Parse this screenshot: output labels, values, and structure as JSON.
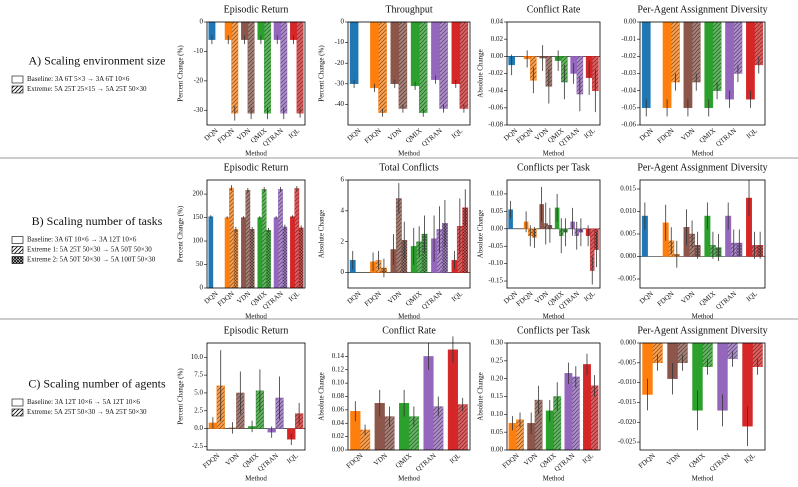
{
  "rows": [
    {
      "label": "A) Scaling environment size",
      "legend": [
        {
          "name": "Baseline: 3A 6T 5×3 → 3A 6T 10×6",
          "hatch": "none"
        },
        {
          "name": "Extreme: 5A 25T 25×15 → 5A 25T 50×30",
          "hatch": "/"
        }
      ]
    },
    {
      "label": "B) Scaling number of tasks",
      "legend": [
        {
          "name": "Baseline: 3A 6T 10×6 → 3A 12T 10×6",
          "hatch": "none"
        },
        {
          "name": "Extreme 1: 5A 25T 50×30 → 5A 50T 50×30",
          "hatch": "/"
        },
        {
          "name": "Extreme 2: 5A 50T 50×30 → 5A 100T 50×30",
          "hatch": "x"
        }
      ]
    },
    {
      "label": "C) Scaling number of agents",
      "legend": [
        {
          "name": "Baseline: 3A 12T 10×6 → 5A 12T 10×6",
          "hatch": "none"
        },
        {
          "name": "Extreme: 5A 25T 50×30 → 9A 25T 50×30",
          "hatch": "/"
        }
      ]
    }
  ],
  "chart_data": [
    {
      "type": "bar",
      "title": "Episodic Return",
      "x_label": "Method",
      "y_label": "Percent Change (%)",
      "categories": [
        "DQN",
        "FDQN",
        "VDN",
        "QMIX",
        "QTRAN",
        "IQL"
      ],
      "colors": [
        "#1f77b4",
        "#ff7f0e",
        "#8c564b",
        "#2ca02c",
        "#9467bd",
        "#d62728"
      ],
      "series": [
        {
          "hatch": "none",
          "values": [
            -6,
            -6,
            -6,
            -6,
            -6,
            -6
          ],
          "errors": [
            1.5,
            1.5,
            1.5,
            1.5,
            1.5,
            1.5
          ]
        },
        {
          "hatch": "/",
          "values": [
            null,
            -31,
            -31,
            -31,
            -31,
            -31
          ],
          "errors": [
            null,
            2.5,
            2,
            2,
            2,
            1.5
          ]
        }
      ],
      "ylim": [
        -35,
        0
      ],
      "yticks": [
        0,
        -10,
        -20,
        -30
      ]
    },
    {
      "type": "bar",
      "title": "Throughput",
      "x_label": "Method",
      "y_label": "Percent Change (%)",
      "categories": [
        "DQN",
        "FDQN",
        "VDN",
        "QMIX",
        "QTRAN",
        "IQL"
      ],
      "colors": [
        "#1f77b4",
        "#ff7f0e",
        "#8c564b",
        "#2ca02c",
        "#9467bd",
        "#d62728"
      ],
      "series": [
        {
          "hatch": "none",
          "values": [
            -30,
            -32,
            -30,
            -31,
            -28,
            -30
          ],
          "errors": [
            2,
            2,
            2,
            2,
            2,
            2
          ]
        },
        {
          "hatch": "/",
          "values": [
            null,
            -44,
            -42,
            -44,
            -42,
            -42
          ],
          "errors": [
            null,
            2,
            2,
            2,
            2,
            2
          ]
        }
      ],
      "ylim": [
        -50,
        0
      ],
      "yticks": [
        0,
        -10,
        -20,
        -30,
        -40
      ]
    },
    {
      "type": "bar",
      "title": "Conflict Rate",
      "x_label": "Method",
      "y_label": "Absolute Change",
      "categories": [
        "DQN",
        "FDQN",
        "VDN",
        "QMIX",
        "QTRAN",
        "IQL"
      ],
      "colors": [
        "#1f77b4",
        "#ff7f0e",
        "#8c564b",
        "#2ca02c",
        "#9467bd",
        "#d62728"
      ],
      "series": [
        {
          "hatch": "none",
          "values": [
            -0.01,
            -0.003,
            -0.002,
            -0.005,
            -0.02,
            -0.025
          ],
          "errors": [
            0.012,
            0.01,
            0.015,
            0.012,
            0.012,
            0.02
          ]
        },
        {
          "hatch": "/",
          "values": [
            null,
            -0.028,
            -0.035,
            -0.03,
            -0.044,
            -0.04
          ],
          "errors": [
            null,
            0.015,
            0.02,
            0.02,
            0.02,
            0.025
          ]
        }
      ],
      "ylim": [
        -0.08,
        0.04
      ],
      "yticks": [
        0.04,
        0.02,
        {
          "value": 0,
          "label": "0.00"
        },
        -0.02,
        -0.04,
        -0.06,
        -0.08
      ]
    },
    {
      "type": "bar",
      "title": "Per-Agent Assignment Diversity",
      "x_label": "Method",
      "categories": [
        "DQN",
        "FDQN",
        "VDN",
        "QMIX",
        "QTRAN",
        "IQL"
      ],
      "colors": [
        "#1f77b4",
        "#ff7f0e",
        "#8c564b",
        "#2ca02c",
        "#9467bd",
        "#d62728"
      ],
      "series": [
        {
          "hatch": "none",
          "values": [
            -0.05,
            -0.05,
            -0.05,
            -0.05,
            -0.045,
            -0.045
          ],
          "errors": [
            0.005,
            0.005,
            0.005,
            0.005,
            0.005,
            0.005
          ]
        },
        {
          "hatch": "/",
          "values": [
            null,
            -0.035,
            -0.035,
            -0.04,
            -0.03,
            -0.025
          ],
          "errors": [
            null,
            0.005,
            0.005,
            0.005,
            0.005,
            0.005
          ]
        }
      ],
      "ylim": [
        -0.06,
        0
      ],
      "yticks": [
        {
          "value": 0,
          "label": "0.00"
        },
        -0.01,
        -0.02,
        -0.03,
        -0.04,
        -0.05,
        -0.06
      ]
    },
    {
      "type": "bar",
      "title": "Episodic Return",
      "x_label": "Method",
      "y_label": "Percent Change (%)",
      "categories": [
        "DQN",
        "FDQN",
        "VDN",
        "QMIX",
        "QTRAN",
        "IQL"
      ],
      "colors": [
        "#1f77b4",
        "#ff7f0e",
        "#8c564b",
        "#2ca02c",
        "#9467bd",
        "#d62728"
      ],
      "series": [
        {
          "hatch": "none",
          "values": [
            152,
            150,
            150,
            150,
            150,
            152
          ],
          "errors": [
            3,
            3,
            3,
            3,
            3,
            3
          ]
        },
        {
          "hatch": "/",
          "values": [
            null,
            213,
            208,
            210,
            210,
            212
          ],
          "errors": [
            null,
            6,
            5,
            5,
            5,
            5
          ]
        },
        {
          "hatch": "x",
          "values": [
            null,
            125,
            125,
            123,
            130,
            128
          ],
          "errors": [
            null,
            5,
            5,
            5,
            5,
            5
          ]
        }
      ],
      "ylim": [
        0,
        230
      ],
      "yticks": [
        0,
        50,
        100,
        150,
        200
      ]
    },
    {
      "type": "bar",
      "title": "Total Conflicts",
      "x_label": "Method",
      "y_label": "Absolute Change",
      "categories": [
        "DQN",
        "FDQN",
        "VDN",
        "QMIX",
        "QTRAN",
        "IQL"
      ],
      "colors": [
        "#1f77b4",
        "#ff7f0e",
        "#8c564b",
        "#2ca02c",
        "#9467bd",
        "#d62728"
      ],
      "series": [
        {
          "hatch": "none",
          "values": [
            0.8,
            0.7,
            1.5,
            1.7,
            2.2,
            0.8
          ],
          "errors": [
            0.6,
            0.6,
            1,
            1.2,
            1.5,
            0.6
          ]
        },
        {
          "hatch": "/",
          "values": [
            null,
            0.8,
            4.8,
            2,
            2.8,
            3
          ],
          "errors": [
            null,
            0.6,
            1,
            1,
            1.5,
            1.8
          ]
        },
        {
          "hatch": "x",
          "values": [
            null,
            0.3,
            2.1,
            2.5,
            3.2,
            4.2
          ],
          "errors": [
            null,
            0.6,
            1.2,
            1.2,
            1.5,
            1.2
          ]
        }
      ],
      "ylim": [
        -1,
        6
      ],
      "yticks": [
        0,
        2,
        4,
        6
      ]
    },
    {
      "type": "bar",
      "title": "Conflicts per Task",
      "x_label": "Method",
      "y_label": "Absolute Change",
      "categories": [
        "DQN",
        "FDQN",
        "VDN",
        "QMIX",
        "QTRAN",
        "IQL"
      ],
      "colors": [
        "#1f77b4",
        "#ff7f0e",
        "#8c564b",
        "#2ca02c",
        "#9467bd",
        "#d62728"
      ],
      "series": [
        {
          "hatch": "none",
          "values": [
            0.055,
            0.02,
            0.07,
            0.06,
            0.02,
            -0.02
          ],
          "errors": [
            0.025,
            0.03,
            0.05,
            0.04,
            0.04,
            0.03
          ]
        },
        {
          "hatch": "/",
          "values": [
            null,
            -0.02,
            0.015,
            -0.02,
            -0.02,
            -0.12
          ],
          "errors": [
            null,
            0.03,
            0.06,
            0.05,
            0.04,
            0.04
          ]
        },
        {
          "hatch": "x",
          "values": [
            null,
            -0.025,
            0.01,
            -0.01,
            -0.01,
            -0.06
          ],
          "errors": [
            null,
            0.03,
            0.05,
            0.04,
            0.04,
            0.05
          ]
        }
      ],
      "ylim": [
        -0.17,
        0.14
      ],
      "yticks": [
        {
          "value": 0.1,
          "label": "0.10"
        },
        0.05,
        {
          "value": 0,
          "label": "0.00"
        },
        -0.05,
        {
          "value": -0.1,
          "label": "-0.10"
        },
        -0.15
      ]
    },
    {
      "type": "bar",
      "title": "Per-Agent Assignment Diversity",
      "x_label": "Method",
      "categories": [
        "DQN",
        "FDQN",
        "VDN",
        "QMIX",
        "QTRAN",
        "IQL"
      ],
      "colors": [
        "#1f77b4",
        "#ff7f0e",
        "#8c564b",
        "#2ca02c",
        "#9467bd",
        "#d62728"
      ],
      "series": [
        {
          "hatch": "none",
          "values": [
            0.009,
            0.0075,
            0.0065,
            0.009,
            0.009,
            0.013
          ],
          "errors": [
            0.003,
            0.004,
            0.004,
            0.003,
            0.003,
            0.004
          ]
        },
        {
          "hatch": "/",
          "values": [
            null,
            0.0035,
            0.005,
            0.0025,
            0.003,
            0.0025
          ],
          "errors": [
            null,
            0.003,
            0.003,
            0.003,
            0.003,
            0.003
          ]
        },
        {
          "hatch": "x",
          "values": [
            null,
            0.0005,
            0.0025,
            0.002,
            0.003,
            0.0025
          ],
          "errors": [
            null,
            0.003,
            0.003,
            0.003,
            0.003,
            0.003
          ]
        }
      ],
      "ylim": [
        -0.007,
        0.017
      ],
      "yticks": [
        -0.005,
        {
          "value": 0,
          "label": "0.000"
        },
        0.005,
        {
          "value": 0.01,
          "label": "0.010"
        },
        0.015
      ]
    },
    {
      "type": "bar",
      "title": "Episodic Return",
      "x_label": "Method",
      "y_label": "Percent Change (%)",
      "categories": [
        "FDQN",
        "VDN",
        "QMIX",
        "QTRAN",
        "IQL"
      ],
      "colors": [
        "#ff7f0e",
        "#8c564b",
        "#2ca02c",
        "#9467bd",
        "#d62728"
      ],
      "series": [
        {
          "hatch": "none",
          "values": [
            0.8,
            0.1,
            0.3,
            -0.5,
            -1.5
          ],
          "errors": [
            0.8,
            0.8,
            0.8,
            0.8,
            0.8
          ]
        },
        {
          "hatch": "/",
          "values": [
            6,
            5,
            5.3,
            4.3,
            2.1
          ],
          "errors": [
            5,
            3,
            3,
            3,
            1.5
          ]
        }
      ],
      "ylim": [
        -3,
        12
      ],
      "yticks": [
        -2.5,
        {
          "value": 0,
          "label": "0.0"
        },
        2.5,
        {
          "value": 5,
          "label": "5.0"
        },
        7.5,
        {
          "value": 10,
          "label": "10.0"
        }
      ]
    },
    {
      "type": "bar",
      "title": "Conflict Rate",
      "x_label": "Method",
      "y_label": "Absolute Change",
      "categories": [
        "FDQN",
        "VDN",
        "QMIX",
        "QTRAN",
        "IQL"
      ],
      "colors": [
        "#ff7f0e",
        "#8c564b",
        "#2ca02c",
        "#9467bd",
        "#d62728"
      ],
      "series": [
        {
          "hatch": "none",
          "values": [
            0.058,
            0.07,
            0.07,
            0.14,
            0.15
          ],
          "errors": [
            0.015,
            0.02,
            0.02,
            0.02,
            0.02
          ]
        },
        {
          "hatch": "/",
          "values": [
            0.03,
            0.05,
            0.05,
            0.065,
            0.068
          ],
          "errors": [
            0.008,
            0.015,
            0.015,
            0.015,
            0.01
          ]
        }
      ],
      "ylim": [
        0,
        0.16
      ],
      "yticks": [
        {
          "value": 0,
          "label": "0.00"
        },
        0.02,
        0.04,
        0.06,
        0.08,
        {
          "value": 0.1,
          "label": "0.10"
        },
        0.12,
        0.14
      ]
    },
    {
      "type": "bar",
      "title": "Conflicts per Task",
      "x_label": "Method",
      "y_label": "Absolute Change",
      "categories": [
        "FDQN",
        "VDN",
        "QMIX",
        "QTRAN",
        "IQL"
      ],
      "colors": [
        "#ff7f0e",
        "#8c564b",
        "#2ca02c",
        "#9467bd",
        "#d62728"
      ],
      "series": [
        {
          "hatch": "none",
          "values": [
            0.075,
            0.075,
            0.11,
            0.215,
            0.24
          ],
          "errors": [
            0.02,
            0.03,
            0.03,
            0.03,
            0.03
          ]
        },
        {
          "hatch": "/",
          "values": [
            0.085,
            0.14,
            0.15,
            0.205,
            0.18
          ],
          "errors": [
            0.02,
            0.04,
            0.04,
            0.03,
            0.03
          ]
        }
      ],
      "ylim": [
        0,
        0.3
      ],
      "yticks": [
        {
          "value": 0,
          "label": "0.00"
        },
        0.05,
        {
          "value": 0.1,
          "label": "0.10"
        },
        0.15,
        {
          "value": 0.2,
          "label": "0.20"
        },
        0.25,
        {
          "value": 0.3,
          "label": "0.30"
        }
      ]
    },
    {
      "type": "bar",
      "title": "Per-Agent Assignment Diversity",
      "x_label": "Method",
      "categories": [
        "FDQN",
        "VDN",
        "QMIX",
        "QTRAN",
        "IQL"
      ],
      "colors": [
        "#ff7f0e",
        "#8c564b",
        "#2ca02c",
        "#9467bd",
        "#d62728"
      ],
      "series": [
        {
          "hatch": "none",
          "values": [
            -0.013,
            -0.009,
            -0.017,
            -0.017,
            -0.021
          ],
          "errors": [
            0.004,
            0.004,
            0.005,
            0.004,
            0.005
          ]
        },
        {
          "hatch": "/",
          "values": [
            -0.005,
            -0.005,
            -0.006,
            -0.004,
            -0.006
          ],
          "errors": [
            0.002,
            0.002,
            0.002,
            0.002,
            0.002
          ]
        }
      ],
      "ylim": [
        -0.027,
        0
      ],
      "yticks": [
        {
          "value": 0,
          "label": "0.000"
        },
        -0.005,
        {
          "value": -0.01,
          "label": "-0.010"
        },
        -0.015,
        {
          "value": -0.02,
          "label": "-0.020"
        },
        -0.025
      ]
    }
  ]
}
